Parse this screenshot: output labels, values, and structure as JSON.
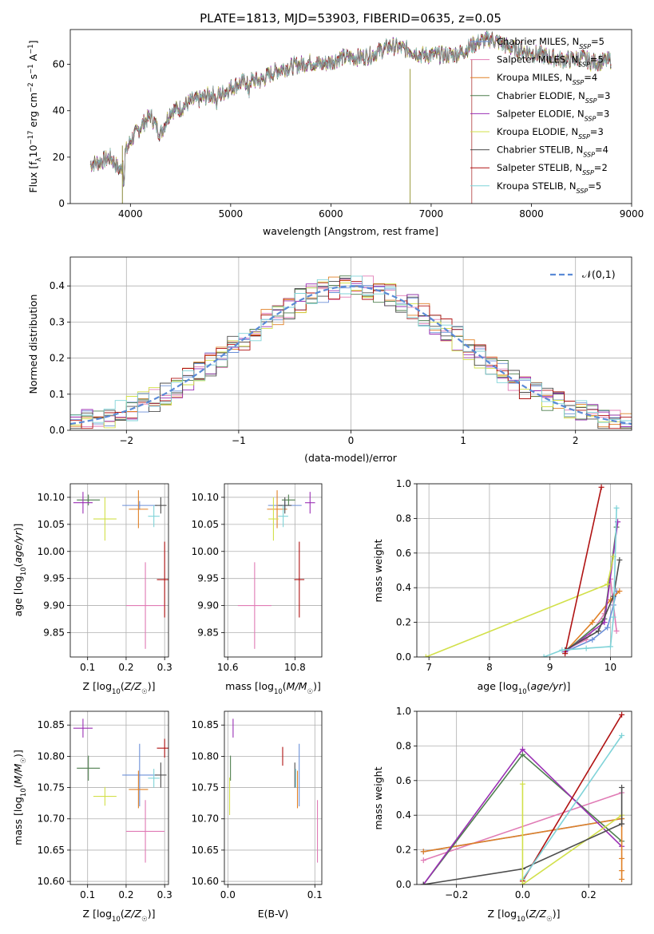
{
  "colors": {
    "Chabrier MILES": "#6b8fd8",
    "Salpeter MILES": "#e07bb5",
    "Kroupa MILES": "#e08026",
    "Chabrier ELODIE": "#4f7f4f",
    "Salpeter ELODIE": "#9a2fb4",
    "Kroupa ELODIE": "#d2e04a",
    "Chabrier STELIB": "#4d4d4d",
    "Salpeter STELIB": "#b01313",
    "Kroupa STELIB": "#7fd3d8",
    "normal": "#5a8ad6"
  },
  "chart_data": [
    {
      "id": "spectrum",
      "type": "line",
      "title": "PLATE=1813, MJD=53903, FIBERID=0635, z=0.05",
      "xlabel": "wavelength [Angstrom, rest frame]",
      "ylabel": "Flux [f_λ 10^-17 erg cm^-2 s^-1 A^-1]",
      "xlim": [
        3400,
        9000
      ],
      "ylim": [
        0,
        75
      ],
      "xticks": [
        4000,
        5000,
        6000,
        7000,
        8000,
        9000
      ],
      "yticks": [
        0,
        20,
        40,
        60
      ],
      "legend_position": "right",
      "legend": [
        {
          "name": "Chabrier MILES",
          "nssp": "5"
        },
        {
          "name": "Salpeter MILES",
          "nssp": "5"
        },
        {
          "name": "Kroupa MILES",
          "nssp": "4"
        },
        {
          "name": "Chabrier ELODIE",
          "nssp": "3"
        },
        {
          "name": "Salpeter ELODIE",
          "nssp": "3"
        },
        {
          "name": "Kroupa ELODIE",
          "nssp": "3"
        },
        {
          "name": "Chabrier STELIB",
          "nssp": "4"
        },
        {
          "name": "Salpeter STELIB",
          "nssp": "2"
        },
        {
          "name": "Kroupa STELIB",
          "nssp": "5"
        }
      ],
      "data_curve": {
        "x": [
          3600,
          3700,
          3800,
          3900,
          3950,
          4000,
          4100,
          4200,
          4300,
          4400,
          4500,
          4600,
          4700,
          4800,
          4900,
          5000,
          5100,
          5200,
          5300,
          5400,
          5500,
          5600,
          5700,
          5800,
          5900,
          6000,
          6100,
          6200,
          6300,
          6400,
          6500,
          6600,
          6700,
          6800,
          6900,
          7000,
          7100,
          7200,
          7300,
          7400,
          7500,
          7600,
          7700,
          7800,
          7900,
          8000,
          8100,
          8200,
          8300,
          8400,
          8500,
          8600,
          8700,
          8800
        ],
        "y": [
          17,
          18,
          20,
          14,
          22,
          27,
          33,
          38,
          30,
          40,
          41,
          44,
          45,
          47,
          47,
          50,
          52,
          53,
          53,
          56,
          58,
          59,
          60,
          61,
          60,
          61,
          63,
          63,
          63,
          64,
          66,
          68,
          67,
          66,
          64,
          64,
          64,
          64,
          65,
          68,
          70,
          71,
          69,
          67,
          66,
          65,
          64,
          63,
          62,
          62,
          63,
          61,
          61,
          62
        ]
      },
      "drop_lines_x": [
        3920,
        6790,
        7405
      ]
    },
    {
      "id": "residual_hist",
      "type": "histogram",
      "xlabel": "(data-model)/error",
      "ylabel": "Normed distribution",
      "xlim": [
        -2.5,
        2.5
      ],
      "ylim": [
        0,
        0.48
      ],
      "xticks": [
        -2,
        -1,
        0,
        1,
        2
      ],
      "yticks": [
        0.0,
        0.1,
        0.2,
        0.3,
        0.4
      ],
      "legend": "𝒩(0,1)",
      "legend_position": "top-right",
      "bin_width": 0.1
    },
    {
      "id": "age_vs_Z",
      "type": "errorbar",
      "xlabel": "Z [log10(Z/Z☉)]",
      "ylabel": "age  [log10(age/yr)]",
      "xlim": [
        0.055,
        0.31
      ],
      "ylim": [
        9.805,
        10.125
      ],
      "xticks": [
        0.1,
        0.2,
        0.3
      ],
      "xticklabels": [
        "0.1",
        "0.2",
        "0.3"
      ],
      "yticks": [
        9.85,
        9.9,
        9.95,
        10.0,
        10.05,
        10.1
      ],
      "yticklabels": [
        "9.85",
        "9.90",
        "9.95",
        "10.00",
        "10.05",
        "10.10"
      ],
      "points": [
        {
          "s": "Chabrier MILES",
          "x": 0.235,
          "y": 10.085,
          "xe": 0.045,
          "ye": 0.008
        },
        {
          "s": "Salpeter MILES",
          "x": 0.25,
          "y": 9.9,
          "xe": 0.05,
          "ye": 0.08
        },
        {
          "s": "Kroupa MILES",
          "x": 0.232,
          "y": 10.078,
          "xe": 0.025,
          "ye": 0.035
        },
        {
          "s": "Chabrier ELODIE",
          "x": 0.102,
          "y": 10.095,
          "xe": 0.03,
          "ye": 0.01
        },
        {
          "s": "Salpeter ELODIE",
          "x": 0.088,
          "y": 10.09,
          "xe": 0.025,
          "ye": 0.02
        },
        {
          "s": "Kroupa ELODIE",
          "x": 0.145,
          "y": 10.06,
          "xe": 0.03,
          "ye": 0.04
        },
        {
          "s": "Chabrier STELIB",
          "x": 0.29,
          "y": 10.085,
          "xe": 0.015,
          "ye": 0.015
        },
        {
          "s": "Salpeter STELIB",
          "x": 0.3,
          "y": 9.948,
          "xe": 0.02,
          "ye": 0.07
        },
        {
          "s": "Kroupa STELIB",
          "x": 0.272,
          "y": 10.065,
          "xe": 0.015,
          "ye": 0.02
        }
      ]
    },
    {
      "id": "age_vs_mass",
      "type": "errorbar",
      "xlabel": "mass [log10(M/M☉)]",
      "ylabel": "",
      "xlim": [
        10.59,
        10.88
      ],
      "ylim": [
        9.805,
        10.125
      ],
      "xticks": [
        10.6,
        10.8
      ],
      "xticklabels": [
        "10.6",
        "10.8"
      ],
      "yticks": [
        9.85,
        9.9,
        9.95,
        10.0,
        10.05,
        10.1
      ],
      "yticklabels": [
        "9.85",
        "9.90",
        "9.95",
        "10.00",
        "10.05",
        "10.10"
      ],
      "points": [
        {
          "s": "Chabrier MILES",
          "x": 10.77,
          "y": 10.085,
          "xe": 0.05,
          "ye": 0.008
        },
        {
          "s": "Salpeter MILES",
          "x": 10.68,
          "y": 9.9,
          "xe": 0.05,
          "ye": 0.08
        },
        {
          "s": "Kroupa MILES",
          "x": 10.747,
          "y": 10.078,
          "xe": 0.03,
          "ye": 0.035
        },
        {
          "s": "Chabrier ELODIE",
          "x": 10.781,
          "y": 10.095,
          "xe": 0.02,
          "ye": 0.01
        },
        {
          "s": "Salpeter ELODIE",
          "x": 10.845,
          "y": 10.09,
          "xe": 0.015,
          "ye": 0.02
        },
        {
          "s": "Kroupa ELODIE",
          "x": 10.736,
          "y": 10.06,
          "xe": 0.015,
          "ye": 0.04
        },
        {
          "s": "Chabrier STELIB",
          "x": 10.77,
          "y": 10.085,
          "xe": 0.02,
          "ye": 0.015
        },
        {
          "s": "Salpeter STELIB",
          "x": 10.813,
          "y": 9.948,
          "xe": 0.015,
          "ye": 0.07
        },
        {
          "s": "Kroupa STELIB",
          "x": 10.765,
          "y": 10.065,
          "xe": 0.015,
          "ye": 0.02
        }
      ]
    },
    {
      "id": "massweight_vs_age",
      "type": "line",
      "xlabel": "age  [log10(age/yr)]",
      "ylabel": "mass weight",
      "xlim": [
        6.8,
        10.35
      ],
      "ylim": [
        0,
        1.0
      ],
      "xticks": [
        7,
        8,
        9,
        10
      ],
      "yticks": [
        0.0,
        0.2,
        0.4,
        0.6,
        0.8,
        1.0
      ],
      "series": [
        {
          "s": "Chabrier MILES",
          "x": [
            9.25,
            9.7,
            9.95,
            10.05,
            10.1
          ],
          "y": [
            0.03,
            0.1,
            0.17,
            0.3,
            0.38
          ]
        },
        {
          "s": "Salpeter MILES",
          "x": [
            9.25,
            9.6,
            9.9,
            10.0,
            10.1
          ],
          "y": [
            0.04,
            0.1,
            0.25,
            0.45,
            0.15
          ]
        },
        {
          "s": "Kroupa MILES",
          "x": [
            9.25,
            9.7,
            10.0,
            10.15
          ],
          "y": [
            0.03,
            0.2,
            0.33,
            0.38
          ]
        },
        {
          "s": "Chabrier ELODIE",
          "x": [
            9.25,
            9.9,
            10.1
          ],
          "y": [
            0.03,
            0.22,
            0.75
          ]
        },
        {
          "s": "Salpeter ELODIE",
          "x": [
            9.25,
            9.9,
            10.12
          ],
          "y": [
            0.03,
            0.2,
            0.78
          ]
        },
        {
          "s": "Kroupa ELODIE",
          "x": [
            6.95,
            9.95,
            10.05
          ],
          "y": [
            0.0,
            0.42,
            0.58
          ]
        },
        {
          "s": "Chabrier STELIB",
          "x": [
            9.25,
            9.8,
            10.05,
            10.15
          ],
          "y": [
            0.04,
            0.15,
            0.35,
            0.56
          ]
        },
        {
          "s": "Salpeter STELIB",
          "x": [
            9.25,
            9.85
          ],
          "y": [
            0.02,
            0.98
          ]
        },
        {
          "s": "Kroupa STELIB",
          "x": [
            8.9,
            9.2,
            9.6,
            10.0,
            10.05,
            10.1
          ],
          "y": [
            0.0,
            0.04,
            0.05,
            0.06,
            0.23,
            0.86
          ]
        }
      ]
    },
    {
      "id": "mass_vs_Z",
      "type": "errorbar",
      "xlabel": "Z [log10(Z/Z☉)]",
      "ylabel": "mass [log10(M/M☉)]",
      "xlim": [
        0.055,
        0.31
      ],
      "ylim": [
        10.595,
        10.872
      ],
      "xticks": [
        0.1,
        0.2,
        0.3
      ],
      "xticklabels": [
        "0.1",
        "0.2",
        "0.3"
      ],
      "yticks": [
        10.6,
        10.65,
        10.7,
        10.75,
        10.8,
        10.85
      ],
      "yticklabels": [
        "10.60",
        "10.65",
        "10.70",
        "10.75",
        "10.80",
        "10.85"
      ],
      "points": [
        {
          "s": "Chabrier MILES",
          "x": 0.235,
          "y": 10.77,
          "xe": 0.045,
          "ye": 0.05
        },
        {
          "s": "Salpeter MILES",
          "x": 0.25,
          "y": 10.68,
          "xe": 0.05,
          "ye": 0.05
        },
        {
          "s": "Kroupa MILES",
          "x": 0.232,
          "y": 10.747,
          "xe": 0.025,
          "ye": 0.03
        },
        {
          "s": "Chabrier ELODIE",
          "x": 0.102,
          "y": 10.781,
          "xe": 0.03,
          "ye": 0.02
        },
        {
          "s": "Salpeter ELODIE",
          "x": 0.088,
          "y": 10.845,
          "xe": 0.025,
          "ye": 0.015
        },
        {
          "s": "Kroupa ELODIE",
          "x": 0.145,
          "y": 10.736,
          "xe": 0.03,
          "ye": 0.015
        },
        {
          "s": "Chabrier STELIB",
          "x": 0.29,
          "y": 10.77,
          "xe": 0.015,
          "ye": 0.02
        },
        {
          "s": "Salpeter STELIB",
          "x": 0.3,
          "y": 10.813,
          "xe": 0.02,
          "ye": 0.015
        },
        {
          "s": "Kroupa STELIB",
          "x": 0.272,
          "y": 10.765,
          "xe": 0.015,
          "ye": 0.015
        }
      ]
    },
    {
      "id": "mass_vs_ebv",
      "type": "errorbar",
      "xlabel": "E(B-V)",
      "ylabel": "",
      "xlim": [
        -0.004,
        0.108
      ],
      "ylim": [
        10.595,
        10.872
      ],
      "xticks": [
        0.0,
        0.1
      ],
      "xticklabels": [
        "0.0",
        "0.1"
      ],
      "yticks": [
        10.6,
        10.65,
        10.7,
        10.75,
        10.8,
        10.85
      ],
      "yticklabels": [
        "10.60",
        "10.65",
        "10.70",
        "10.75",
        "10.80",
        "10.85"
      ],
      "points": [
        {
          "s": "Chabrier MILES",
          "x": 0.082,
          "y": 10.77,
          "xe": 0,
          "ye": 0.05
        },
        {
          "s": "Salpeter MILES",
          "x": 0.103,
          "y": 10.68,
          "xe": 0,
          "ye": 0.05
        },
        {
          "s": "Kroupa MILES",
          "x": 0.08,
          "y": 10.747,
          "xe": 0,
          "ye": 0.03
        },
        {
          "s": "Chabrier ELODIE",
          "x": 0.003,
          "y": 10.781,
          "xe": 0,
          "ye": 0.02
        },
        {
          "s": "Salpeter ELODIE",
          "x": 0.006,
          "y": 10.845,
          "xe": 0,
          "ye": 0.015
        },
        {
          "s": "Kroupa ELODIE",
          "x": 0.002,
          "y": 10.736,
          "xe": 0,
          "ye": 0.03
        },
        {
          "s": "Chabrier STELIB",
          "x": 0.077,
          "y": 10.77,
          "xe": 0,
          "ye": 0.02
        },
        {
          "s": "Salpeter STELIB",
          "x": 0.063,
          "y": 10.8,
          "xe": 0,
          "ye": 0.015
        },
        {
          "s": "Kroupa STELIB",
          "x": 0.078,
          "y": 10.765,
          "xe": 0,
          "ye": 0.015
        }
      ]
    },
    {
      "id": "massweight_vs_Z",
      "type": "line",
      "xlabel": "Z [log10(Z/Z☉)]",
      "ylabel": "mass weight",
      "xlim": [
        -0.32,
        0.33
      ],
      "ylim": [
        0,
        1.0
      ],
      "xticks": [
        -0.2,
        0.0,
        0.2
      ],
      "xticklabels": [
        "−0.2",
        "0.0",
        "0.2"
      ],
      "yticks": [
        0.0,
        0.2,
        0.4,
        0.6,
        0.8,
        1.0
      ],
      "series": [
        {
          "s": "Chabrier MILES",
          "x": [
            -0.3,
            0.3
          ],
          "y": [
            0.19,
            0.38
          ]
        },
        {
          "s": "Salpeter MILES",
          "x": [
            -0.3,
            0.3
          ],
          "y": [
            0.14,
            0.53
          ]
        },
        {
          "s": "Kroupa MILES",
          "x": [
            -0.3,
            0.3
          ],
          "y": [
            0.19,
            0.38
          ]
        },
        {
          "s": "Chabrier ELODIE",
          "x": [
            -0.3,
            0.0,
            0.3
          ],
          "y": [
            0.0,
            0.75,
            0.25
          ]
        },
        {
          "s": "Salpeter ELODIE",
          "x": [
            -0.3,
            0.0,
            0.3
          ],
          "y": [
            0.0,
            0.78,
            0.22
          ]
        },
        {
          "s": "Kroupa ELODIE",
          "x": [
            0.0,
            0.3
          ],
          "y": [
            0.0,
            0.4
          ]
        },
        {
          "s": "Chabrier STELIB",
          "x": [
            -0.3,
            0.0,
            0.3
          ],
          "y": [
            0.0,
            0.09,
            0.35
          ]
        },
        {
          "s": "Salpeter STELIB",
          "x": [
            0.0,
            0.3
          ],
          "y": [
            0.02,
            0.98
          ]
        },
        {
          "s": "Kroupa STELIB",
          "x": [
            0.0,
            0.3
          ],
          "y": [
            0.03,
            0.86
          ]
        }
      ],
      "markers": [
        {
          "s": "Kroupa ELODIE",
          "x": 0.0,
          "y": [
            0.0,
            0.58
          ]
        },
        {
          "s": "Kroupa MILES",
          "x": 0.3,
          "y": [
            0.03,
            0.08,
            0.15,
            0.38
          ]
        },
        {
          "s": "Chabrier STELIB",
          "x": 0.3,
          "y": [
            0.35,
            0.56
          ]
        }
      ]
    }
  ]
}
